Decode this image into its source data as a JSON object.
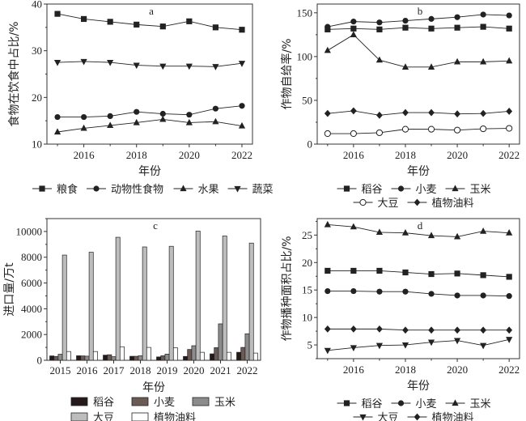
{
  "chart_data": [
    {
      "id": "a",
      "type": "line",
      "panel_label": "a",
      "xlabel": "年份",
      "ylabel": "食物在饮食中占比/%",
      "x": [
        2015,
        2016,
        2017,
        2018,
        2019,
        2020,
        2021,
        2022
      ],
      "xticks": [
        "2016",
        "2018",
        "2020",
        "2022"
      ],
      "xtick_values": [
        2016,
        2018,
        2020,
        2022
      ],
      "yticks": [
        "10",
        "20",
        "30",
        "40"
      ],
      "ytick_values": [
        10,
        20,
        30,
        40
      ],
      "ylim": [
        10,
        40
      ],
      "xlim": [
        2014.6,
        2022.4
      ],
      "legend_position": "bottom",
      "series": [
        {
          "name": "粮食",
          "marker": "square",
          "values": [
            37.9,
            36.8,
            36.2,
            35.6,
            35.2,
            36.3,
            35.0,
            34.5
          ]
        },
        {
          "name": "动物性食物",
          "marker": "circle",
          "values": [
            15.8,
            15.8,
            16.0,
            16.9,
            16.5,
            16.3,
            17.6,
            18.2
          ]
        },
        {
          "name": "水果",
          "marker": "triangle-up",
          "values": [
            12.6,
            13.4,
            14.0,
            14.6,
            15.3,
            14.6,
            14.8,
            13.9
          ]
        },
        {
          "name": "蔬菜",
          "marker": "triangle-down",
          "values": [
            27.5,
            27.7,
            27.5,
            26.9,
            26.7,
            26.7,
            26.6,
            27.3
          ]
        }
      ]
    },
    {
      "id": "b",
      "type": "line",
      "panel_label": "b",
      "xlabel": "年份",
      "ylabel": "作物自给率/%",
      "x": [
        2015,
        2016,
        2017,
        2018,
        2019,
        2020,
        2021,
        2022
      ],
      "xticks": [
        "2016",
        "2018",
        "2020",
        "2022"
      ],
      "xtick_values": [
        2016,
        2018,
        2020,
        2022
      ],
      "yticks": [
        "0",
        "50",
        "100",
        "150"
      ],
      "ytick_values": [
        0,
        50,
        100,
        150
      ],
      "ylim": [
        0,
        160
      ],
      "xlim": [
        2014.6,
        2022.4
      ],
      "legend_position": "bottom",
      "series": [
        {
          "name": "稻谷",
          "marker": "square",
          "values": [
            131,
            132,
            131,
            133,
            132,
            133,
            134,
            132
          ]
        },
        {
          "name": "小麦",
          "marker": "circle",
          "values": [
            134,
            140,
            139,
            141,
            143,
            145,
            148,
            147
          ]
        },
        {
          "name": "玉米",
          "marker": "triangle-up",
          "values": [
            107,
            125,
            96,
            88,
            88,
            94,
            94,
            95
          ]
        },
        {
          "name": "大豆",
          "marker": "circle-open",
          "values": [
            12,
            12,
            13,
            17,
            17,
            16,
            17.5,
            18
          ]
        },
        {
          "name": "植物油料",
          "marker": "diamond",
          "values": [
            35,
            38,
            33,
            36,
            36,
            34.5,
            35,
            37.5
          ]
        }
      ]
    },
    {
      "id": "c",
      "type": "bar",
      "panel_label": "c",
      "xlabel": "年份",
      "ylabel": "进口量/万t",
      "categories": [
        "2015",
        "2016",
        "2017",
        "2018",
        "2019",
        "2020",
        "2021",
        "2022"
      ],
      "yticks": [
        "0",
        "2000",
        "4000",
        "6000",
        "8000",
        "10000"
      ],
      "ytick_values": [
        0,
        2000,
        4000,
        6000,
        8000,
        10000
      ],
      "ylim": [
        0,
        11000
      ],
      "legend_position": "bottom",
      "series": [
        {
          "name": "稻谷",
          "color": "#241a1a",
          "values": [
            340,
            350,
            400,
            310,
            260,
            300,
            500,
            620
          ]
        },
        {
          "name": "小麦",
          "color": "#6a5a55",
          "values": [
            300,
            340,
            430,
            310,
            350,
            840,
            980,
            1000
          ]
        },
        {
          "name": "玉米",
          "color": "#8c8c8c",
          "values": [
            470,
            320,
            280,
            350,
            480,
            1130,
            2830,
            2060
          ]
        },
        {
          "name": "大豆",
          "color": "#bdbdbd",
          "values": [
            8170,
            8390,
            9550,
            8800,
            8850,
            10030,
            9650,
            9100
          ]
        },
        {
          "name": "植物油料",
          "color": "#ffffff",
          "values": [
            680,
            680,
            1050,
            1000,
            970,
            620,
            620,
            560
          ]
        }
      ]
    },
    {
      "id": "d",
      "type": "line",
      "panel_label": "d",
      "xlabel": "年份",
      "ylabel": "作物播种面积占比/%",
      "x": [
        2015,
        2016,
        2017,
        2018,
        2019,
        2020,
        2021,
        2022
      ],
      "xticks": [
        "2016",
        "2018",
        "2020",
        "2022"
      ],
      "xtick_values": [
        2016,
        2018,
        2020,
        2022
      ],
      "yticks": [
        "5",
        "10",
        "15",
        "20",
        "25"
      ],
      "ytick_values": [
        5,
        10,
        15,
        20,
        25
      ],
      "ylim": [
        2.5,
        28
      ],
      "xlim": [
        2014.6,
        2022.4
      ],
      "legend_position": "bottom",
      "series": [
        {
          "name": "稻谷",
          "marker": "square",
          "values": [
            18.5,
            18.5,
            18.5,
            18.2,
            17.9,
            18.0,
            17.7,
            17.4
          ]
        },
        {
          "name": "小麦",
          "marker": "circle",
          "values": [
            14.8,
            14.8,
            14.7,
            14.7,
            14.3,
            14.0,
            14.0,
            13.9
          ]
        },
        {
          "name": "玉米",
          "marker": "triangle-up",
          "values": [
            26.9,
            26.5,
            25.5,
            25.4,
            24.9,
            24.7,
            25.7,
            25.4
          ]
        },
        {
          "name": "大豆",
          "marker": "triangle-down",
          "values": [
            4.0,
            4.5,
            4.9,
            5.0,
            5.5,
            5.8,
            4.9,
            6.0
          ]
        },
        {
          "name": "植物油料",
          "marker": "diamond",
          "values": [
            7.9,
            7.9,
            7.9,
            7.7,
            7.7,
            7.7,
            7.7,
            7.7
          ]
        }
      ]
    }
  ]
}
